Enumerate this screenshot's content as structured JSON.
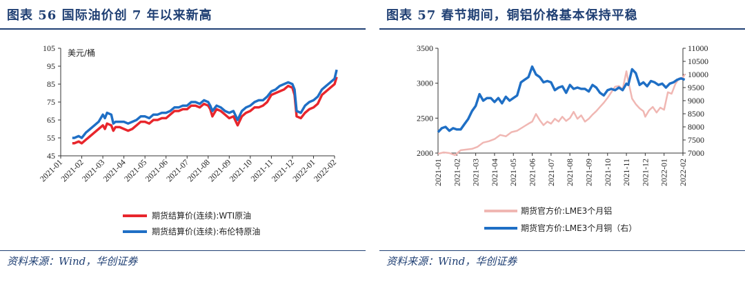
{
  "left": {
    "title": "图表 56 国际油价创 7 年以来新高",
    "source": "资料来源：Wind，华创证券",
    "chart_data": {
      "type": "line",
      "unit_label": "美元/桶",
      "x_ticks": [
        "2021-01",
        "2021-02",
        "2021-03",
        "2021-04",
        "2021-05",
        "2021-06",
        "2021-07",
        "2021-08",
        "2021-09",
        "2021-10",
        "2021-11",
        "2021-12",
        "2022-01",
        "2022-02"
      ],
      "yticks": [
        45,
        55,
        65,
        75,
        85,
        95,
        105
      ],
      "ylim": [
        45,
        105
      ],
      "grid": false,
      "legend": "bottom",
      "series": [
        {
          "name": "期货结算价(连续):WTI原油",
          "color": "#e8262c",
          "x": [
            0.55,
            0.65,
            0.85,
            1.0,
            1.2,
            1.4,
            1.6,
            1.8,
            2.0,
            2.1,
            2.2,
            2.4,
            2.5,
            2.6,
            2.8,
            3.0,
            3.2,
            3.4,
            3.6,
            3.8,
            4.0,
            4.2,
            4.4,
            4.6,
            4.8,
            5.0,
            5.2,
            5.4,
            5.6,
            5.8,
            6.0,
            6.2,
            6.4,
            6.6,
            6.8,
            7.0,
            7.1,
            7.2,
            7.4,
            7.6,
            7.8,
            8.0,
            8.2,
            8.4,
            8.6,
            8.8,
            9.0,
            9.2,
            9.4,
            9.6,
            9.8,
            10.0,
            10.2,
            10.4,
            10.6,
            10.8,
            11.0,
            11.1,
            11.2,
            11.4,
            11.6,
            11.8,
            12.0,
            12.2,
            12.4,
            12.6,
            12.8,
            13.0,
            13.1
          ],
          "y": [
            52,
            52,
            53,
            52,
            54,
            56,
            58,
            60,
            62,
            60,
            63,
            62,
            59,
            61,
            61,
            60,
            59,
            60,
            62,
            64,
            64,
            63,
            65,
            65,
            66,
            66,
            68,
            70,
            70,
            71,
            71,
            73,
            73,
            72,
            74,
            73,
            71,
            67,
            71,
            70,
            68,
            66,
            67,
            62,
            67,
            69,
            70,
            72,
            72,
            73,
            75,
            79,
            80,
            81,
            82,
            84,
            83,
            79,
            67,
            66,
            69,
            71,
            72,
            74,
            79,
            81,
            83,
            85,
            89
          ]
        },
        {
          "name": "期货结算价(连续):布伦特原油",
          "color": "#1f6fc5",
          "x": [
            0.55,
            0.65,
            0.85,
            1.0,
            1.2,
            1.4,
            1.6,
            1.8,
            2.0,
            2.1,
            2.2,
            2.4,
            2.5,
            2.6,
            2.8,
            3.0,
            3.2,
            3.4,
            3.6,
            3.8,
            4.0,
            4.2,
            4.4,
            4.6,
            4.8,
            5.0,
            5.2,
            5.4,
            5.6,
            5.8,
            6.0,
            6.2,
            6.4,
            6.6,
            6.8,
            7.0,
            7.1,
            7.2,
            7.4,
            7.6,
            7.8,
            8.0,
            8.2,
            8.4,
            8.6,
            8.8,
            9.0,
            9.2,
            9.4,
            9.6,
            9.8,
            10.0,
            10.2,
            10.4,
            10.6,
            10.8,
            11.0,
            11.1,
            11.2,
            11.4,
            11.6,
            11.8,
            12.0,
            12.2,
            12.4,
            12.6,
            12.8,
            13.0,
            13.1
          ],
          "y": [
            55,
            55,
            56,
            55,
            58,
            60,
            62,
            64,
            68,
            66,
            69,
            68,
            63,
            64,
            64,
            64,
            63,
            64,
            65,
            67,
            67,
            66,
            68,
            68,
            69,
            69,
            70,
            72,
            72,
            73,
            73,
            75,
            75,
            74,
            76,
            75,
            73,
            70,
            73,
            72,
            70,
            69,
            70,
            65,
            70,
            72,
            73,
            75,
            76,
            76,
            78,
            81,
            82,
            84,
            85,
            86,
            85,
            82,
            70,
            69,
            73,
            75,
            76,
            78,
            82,
            84,
            86,
            88,
            93
          ]
        }
      ]
    }
  },
  "right": {
    "title": "图表 57 春节期间，铜铝价格基本保持平稳",
    "source": "资料来源：Wind，华创证券",
    "chart_data": {
      "type": "line",
      "x_ticks": [
        "2021-01",
        "2021-02",
        "2021-03",
        "2021-04",
        "2021-05",
        "2021-06",
        "2021-07",
        "2021-08",
        "2021-09",
        "2021-10",
        "2021-11",
        "2021-12",
        "2022-01",
        "2022-02"
      ],
      "left_yticks": [
        2000,
        2500,
        3000,
        3500
      ],
      "right_yticks": [
        7000,
        7500,
        8000,
        8500,
        9000,
        9500,
        10000,
        10500,
        11000
      ],
      "left_ylim": [
        2000,
        3500
      ],
      "right_ylim": [
        7000,
        11000
      ],
      "grid": false,
      "legend": "bottom",
      "series": [
        {
          "name": "期货官方价:LME3个月铝",
          "axis": "left",
          "color": "#f0b7b3",
          "x": [
            0.0,
            0.3,
            0.6,
            0.9,
            1.2,
            1.5,
            1.8,
            2.1,
            2.4,
            2.7,
            3.0,
            3.3,
            3.6,
            3.9,
            4.2,
            4.5,
            4.8,
            5.0,
            5.2,
            5.4,
            5.6,
            5.8,
            6.0,
            6.2,
            6.4,
            6.6,
            6.8,
            7.0,
            7.2,
            7.4,
            7.6,
            7.8,
            8.0,
            8.2,
            8.4,
            8.6,
            8.8,
            9.0,
            9.2,
            9.4,
            9.6,
            9.8,
            10.0,
            10.1,
            10.3,
            10.5,
            10.7,
            10.9,
            11.0,
            11.2,
            11.4,
            11.6,
            11.8,
            12.0,
            12.2,
            12.4,
            12.6,
            12.8,
            13.0,
            13.1
          ],
          "y": [
            1990,
            2010,
            2000,
            1970,
            2040,
            2050,
            2060,
            2090,
            2150,
            2170,
            2200,
            2260,
            2240,
            2300,
            2320,
            2370,
            2420,
            2450,
            2560,
            2470,
            2400,
            2450,
            2420,
            2490,
            2450,
            2520,
            2460,
            2500,
            2590,
            2490,
            2540,
            2450,
            2490,
            2550,
            2600,
            2660,
            2720,
            2790,
            2870,
            2950,
            2960,
            2910,
            3170,
            3030,
            2780,
            2700,
            2640,
            2600,
            2520,
            2610,
            2660,
            2580,
            2650,
            2620,
            2870,
            2850,
            2990,
            3070,
            3080,
            3130
          ]
        },
        {
          "name": "期货官方价:LME3个月铜（右）",
          "axis": "right",
          "color": "#1f6fc5",
          "x": [
            0.0,
            0.2,
            0.4,
            0.6,
            0.8,
            1.0,
            1.2,
            1.4,
            1.6,
            1.8,
            2.0,
            2.2,
            2.4,
            2.6,
            2.8,
            3.0,
            3.2,
            3.4,
            3.6,
            3.8,
            4.0,
            4.2,
            4.4,
            4.6,
            4.8,
            5.0,
            5.2,
            5.4,
            5.6,
            5.8,
            6.0,
            6.2,
            6.4,
            6.6,
            6.8,
            7.0,
            7.2,
            7.4,
            7.6,
            7.8,
            8.0,
            8.2,
            8.4,
            8.6,
            8.8,
            9.0,
            9.2,
            9.4,
            9.6,
            9.8,
            10.0,
            10.1,
            10.3,
            10.5,
            10.7,
            10.9,
            11.1,
            11.3,
            11.5,
            11.7,
            11.9,
            12.1,
            12.3,
            12.5,
            12.7,
            12.9,
            13.1
          ],
          "y": [
            7800,
            7950,
            8000,
            7850,
            7950,
            7900,
            7900,
            8100,
            8300,
            8600,
            8800,
            9250,
            9000,
            9100,
            9100,
            8950,
            9100,
            8900,
            9150,
            9000,
            9100,
            9200,
            9700,
            9800,
            9900,
            10300,
            10000,
            9900,
            9700,
            9750,
            9700,
            9400,
            9500,
            9550,
            9300,
            9600,
            9450,
            9500,
            9450,
            9450,
            9350,
            9600,
            9500,
            9300,
            9200,
            9400,
            9450,
            9400,
            9500,
            9400,
            9650,
            9600,
            10200,
            10050,
            9600,
            9700,
            9550,
            9750,
            9700,
            9600,
            9650,
            9500,
            9650,
            9700,
            9800,
            9850,
            9800
          ]
        }
      ]
    }
  }
}
